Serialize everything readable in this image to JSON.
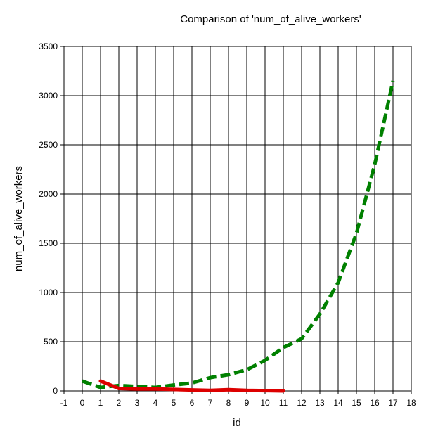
{
  "chart_data": {
    "type": "line",
    "title": "Comparison of  'num_of_alive_workers'",
    "xlabel": "id",
    "ylabel": "num_of_alive_workers",
    "xlim": [
      -1,
      18
    ],
    "ylim": [
      0,
      3500
    ],
    "x_ticks": [
      -1,
      0,
      1,
      2,
      3,
      4,
      5,
      6,
      7,
      8,
      9,
      10,
      11,
      12,
      13,
      14,
      15,
      16,
      17,
      18
    ],
    "y_ticks": [
      0,
      500,
      1000,
      1500,
      2000,
      2500,
      3000,
      3500
    ],
    "grid": true,
    "legend": "none",
    "series": [
      {
        "color": "#008000",
        "style": "dashed",
        "x": [
          0,
          1,
          2,
          3,
          4,
          5,
          6,
          7,
          8,
          9,
          10,
          11,
          12,
          13,
          14,
          15,
          16,
          17
        ],
        "values": [
          100,
          35,
          55,
          45,
          35,
          60,
          80,
          135,
          165,
          215,
          310,
          440,
          530,
          780,
          1100,
          1600,
          2300,
          3150
        ]
      },
      {
        "color": "#dd0000",
        "style": "solid",
        "x": [
          1,
          2,
          3,
          4,
          5,
          6,
          7,
          8,
          9,
          10,
          11
        ],
        "values": [
          100,
          25,
          20,
          20,
          15,
          10,
          5,
          12,
          5,
          3,
          0
        ]
      }
    ]
  }
}
